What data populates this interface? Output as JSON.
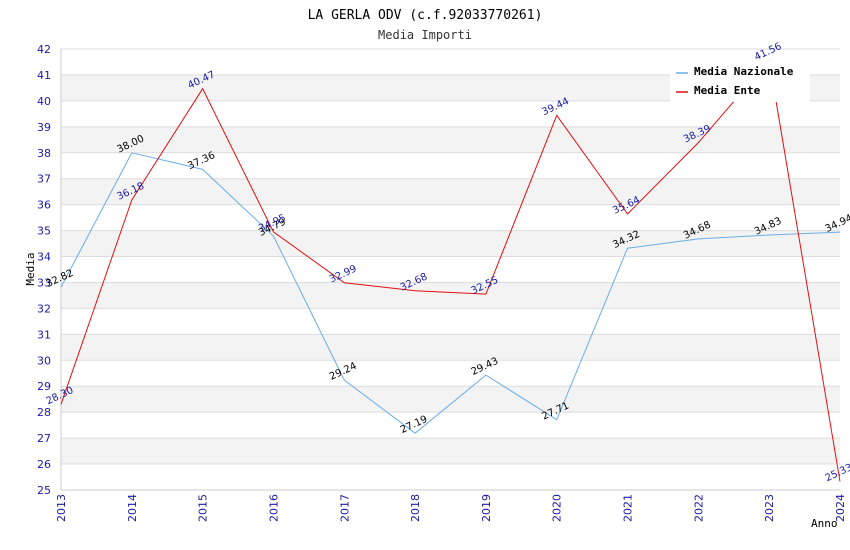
{
  "chart_data": {
    "type": "line",
    "title": "LA GERLA ODV (c.f.92033770261)",
    "subtitle": "Media Importi",
    "xlabel": "Anno",
    "ylabel": "Media",
    "ylim": [
      25,
      42
    ],
    "grid": true,
    "legend": "top-right",
    "x": [
      "2013",
      "2014",
      "2015",
      "2016",
      "2017",
      "2018",
      "2019",
      "2020",
      "2021",
      "2022",
      "2023",
      "2024"
    ],
    "series": [
      {
        "name": "Media Nazionale",
        "color": "#6aaee8",
        "values": [
          32.82,
          38.0,
          37.36,
          34.79,
          29.24,
          27.19,
          29.43,
          27.71,
          34.32,
          34.68,
          34.83,
          34.94
        ],
        "labels": [
          "32.82",
          "38.00",
          "37.36",
          "34.79",
          "29.24",
          "27.19",
          "29.43",
          "27.71",
          "34.32",
          "34.68",
          "34.83",
          "34.94"
        ]
      },
      {
        "name": "Media Ente",
        "color": "#e01010",
        "values": [
          28.3,
          36.18,
          40.47,
          34.95,
          32.99,
          32.68,
          32.55,
          39.44,
          35.64,
          38.39,
          41.56,
          25.33
        ],
        "labels": [
          "28.30",
          "36.18",
          "40.47",
          "34.95",
          "32.99",
          "32.68",
          "32.55",
          "39.44",
          "35.64",
          "38.39",
          "41.56",
          "25.33"
        ]
      }
    ]
  }
}
